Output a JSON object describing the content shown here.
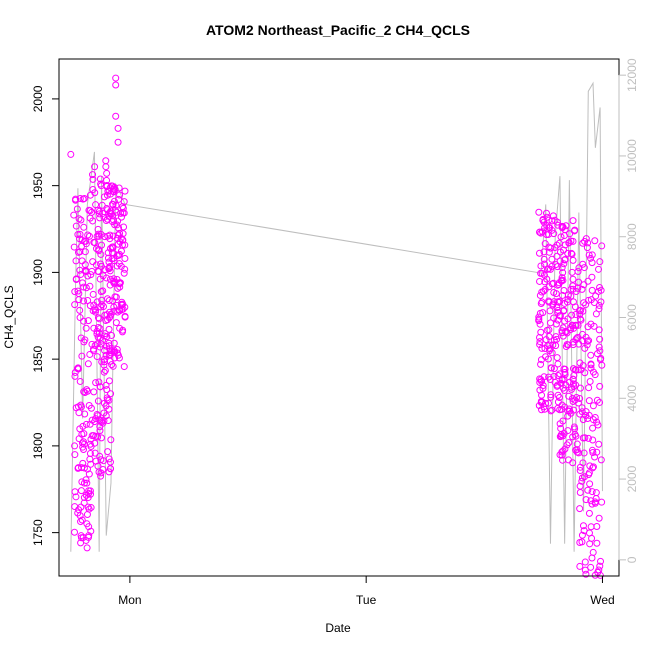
{
  "chart_data": {
    "type": "scatter",
    "title": "ATOM2 Northeast_Pacific_2 CH4_QCLS",
    "xlabel": "Date",
    "ylabel": "CH4_QCLS",
    "x_ticks": [
      {
        "label": "Mon",
        "day": 1
      },
      {
        "label": "Tue",
        "day": 2
      },
      {
        "label": "Wed",
        "day": 3
      }
    ],
    "xlim": [
      0.7,
      3.07
    ],
    "ylim": [
      1725,
      2023
    ],
    "y_ticks": [
      "1750",
      "1800",
      "1850",
      "1900",
      "1950",
      "2000"
    ],
    "y2lim": [
      -400,
      12400
    ],
    "y2_ticks": [
      "0",
      "2000",
      "4000",
      "6000",
      "8000",
      "10000",
      "12000"
    ],
    "grid": false,
    "point_color": "#ff00ff",
    "line_color": "#bebebe",
    "series": [
      {
        "kind": "points",
        "axis": "left",
        "clusters": [
          {
            "x": [
              0.76,
              0.84
            ],
            "y": [
              1740,
              1945
            ]
          },
          {
            "x": [
              0.84,
              0.92
            ],
            "y": [
              1780,
              1965
            ]
          },
          {
            "x": [
              0.9,
              0.98
            ],
            "y": [
              1845,
              1950
            ]
          },
          {
            "x": [
              2.73,
              2.82
            ],
            "y": [
              1820,
              1935
            ]
          },
          {
            "x": [
              2.82,
              2.9
            ],
            "y": [
              1790,
              1930
            ]
          },
          {
            "x": [
              2.9,
              3.0
            ],
            "y": [
              1725,
              1920
            ]
          }
        ],
        "highlights": [
          {
            "x": 0.75,
            "y": 1968
          },
          {
            "x": 0.94,
            "y": 2012
          },
          {
            "x": 0.94,
            "y": 2008
          },
          {
            "x": 0.94,
            "y": 1990
          },
          {
            "x": 0.95,
            "y": 1983
          },
          {
            "x": 0.95,
            "y": 1975
          },
          {
            "x": 2.93,
            "y": 1726
          },
          {
            "x": 2.95,
            "y": 1730
          }
        ]
      },
      {
        "kind": "line",
        "axis": "right",
        "name": "",
        "x": [
          0.75,
          0.77,
          0.78,
          0.8,
          0.82,
          0.85,
          0.87,
          0.88,
          0.9,
          0.92,
          0.94,
          0.95,
          0.98,
          2.74,
          2.76,
          2.78,
          2.8,
          2.82,
          2.84,
          2.86,
          2.88,
          2.9,
          2.92,
          2.94,
          2.96,
          2.97,
          2.99,
          3.0
        ],
        "y": [
          200,
          6800,
          9200,
          3500,
          8800,
          10100,
          200,
          9500,
          600,
          1900,
          9300,
          9200,
          8800,
          7100,
          8800,
          400,
          8000,
          9500,
          400,
          9400,
          200,
          8600,
          1200,
          11600,
          11800,
          10200,
          11200,
          1700
        ]
      }
    ]
  }
}
